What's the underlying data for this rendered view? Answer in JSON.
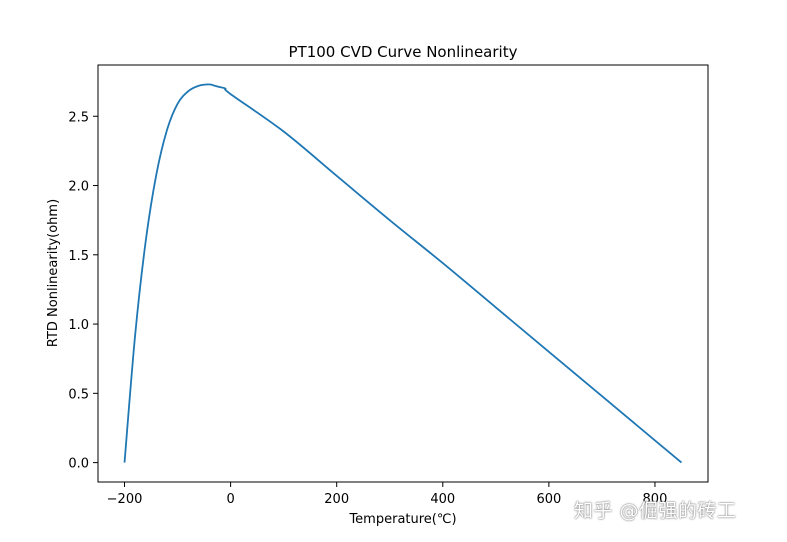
{
  "chart_data": {
    "type": "line",
    "title": "PT100 CVD Curve Nonlinearity",
    "xlabel": "Temperature(℃)",
    "ylabel": "RTD Nonlinearity(ohm)",
    "xlim": [
      -250,
      900
    ],
    "ylim": [
      -0.14,
      2.87
    ],
    "xticks": [
      -200,
      0,
      200,
      400,
      600,
      800
    ],
    "xtick_labels": [
      "−200",
      "0",
      "200",
      "400",
      "600",
      "800"
    ],
    "yticks": [
      0.0,
      0.5,
      1.0,
      1.5,
      2.0,
      2.5
    ],
    "ytick_labels": [
      "0.0",
      "0.5",
      "1.0",
      "1.5",
      "2.0",
      "2.5"
    ],
    "grid": false,
    "series": [
      {
        "name": "nonlinearity",
        "color": "#1f77b4",
        "x": [
          -200,
          -180,
          -160,
          -140,
          -120,
          -100,
          -80,
          -60,
          -40,
          -30,
          -20,
          -10,
          0,
          100,
          200,
          300,
          400,
          500,
          600,
          700,
          800,
          850
        ],
        "y": [
          0.0,
          0.92,
          1.6,
          2.08,
          2.4,
          2.59,
          2.68,
          2.72,
          2.73,
          2.72,
          2.71,
          2.7,
          2.66,
          2.39,
          2.07,
          1.75,
          1.44,
          1.12,
          0.8,
          0.48,
          0.16,
          0.0
        ]
      }
    ]
  },
  "watermark": "知乎 @倔强的砖工"
}
